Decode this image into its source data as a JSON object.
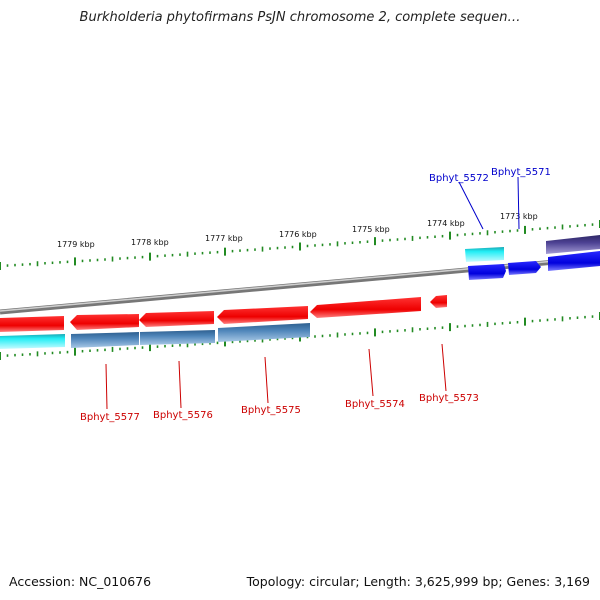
{
  "title": "Burkholderia phytofirmans PsJN chromosome 2, complete sequen…",
  "footer": {
    "accession": "Accession: NC_010676",
    "stats": "Topology: circular; Length: 3,625,999 bp; Genes: 3,169"
  },
  "ruler": [
    "1779 kbp",
    "1778 kbp",
    "1777 kbp",
    "1776 kbp",
    "1775 kbp",
    "1774 kbp",
    "1773 kbp"
  ],
  "genes_top": [
    {
      "label": "Bphyt_5572",
      "color": "#0000cc"
    },
    {
      "label": "Bphyt_5571",
      "color": "#0000cc"
    }
  ],
  "genes_bottom": [
    {
      "label": "Bphyt_5577",
      "color": "#cc0000"
    },
    {
      "label": "Bphyt_5576",
      "color": "#cc0000"
    },
    {
      "label": "Bphyt_5575",
      "color": "#cc0000"
    },
    {
      "label": "Bphyt_5574",
      "color": "#cc0000"
    },
    {
      "label": "Bphyt_5573",
      "color": "#cc0000"
    }
  ],
  "colors": {
    "reverse_cds": "#ee1111",
    "forward_cds": "#0a00ee",
    "cyan_feature": "#22e6ee",
    "steelblue_feature": "#4a7fb0",
    "slateblue_feature": "#4a3f8a",
    "backbone": "#8a8a8a",
    "tick": "#228b22"
  }
}
